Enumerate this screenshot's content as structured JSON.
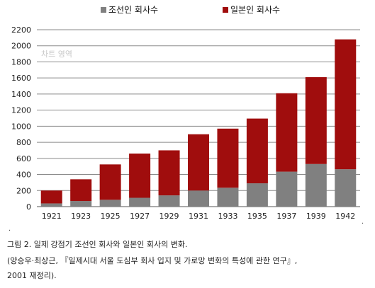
{
  "chart_data": {
    "type": "bar",
    "stacked": true,
    "categories": [
      "1921",
      "1923",
      "1925",
      "1927",
      "1929",
      "1931",
      "1933",
      "1935",
      "1937",
      "1939",
      "1942"
    ],
    "series": [
      {
        "name": "조선인 회사수",
        "color": "#808080",
        "values": [
          40,
          70,
          85,
          110,
          140,
          200,
          235,
          290,
          435,
          530,
          465
        ]
      },
      {
        "name": "일본인 회사수",
        "color": "#a00d0d",
        "values": [
          160,
          270,
          440,
          550,
          560,
          700,
          735,
          805,
          975,
          1080,
          1615
        ]
      }
    ],
    "ylim": [
      0,
      2200
    ],
    "yticks": [
      0,
      200,
      400,
      600,
      800,
      1000,
      1200,
      1400,
      1600,
      1800,
      2000,
      2200
    ],
    "grid": true,
    "legend": "top",
    "watermark": "차트 영역"
  },
  "caption": {
    "line1": "그림 2. 일제 강점기 조선인 회사와 일본인 회사의 변화.",
    "line2": "(양승우·최상근, 『일제시대 서울 도심부 회사 입지 및 가로망 변화의 특성에 관한 연구』,",
    "line3": "2001 재정리).",
    "mark_left": ".",
    "mark_right": "."
  }
}
